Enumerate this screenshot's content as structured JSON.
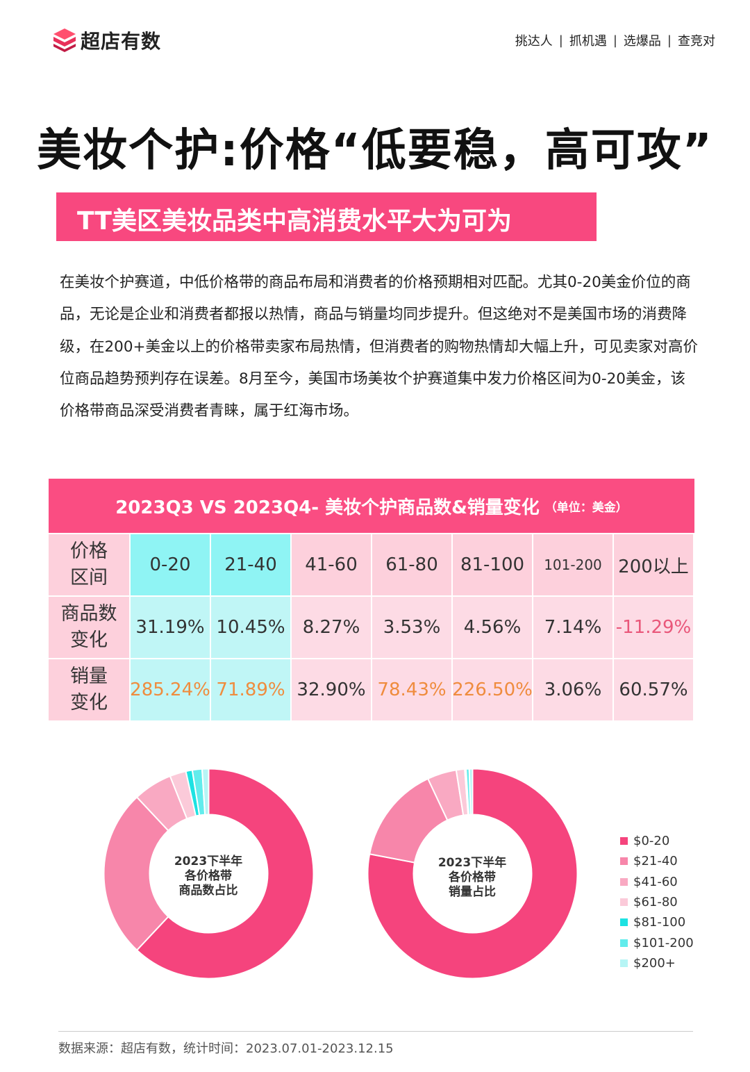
{
  "brand": {
    "name": "超店有数",
    "logo": "brand-logo-icon"
  },
  "nav": [
    "挑达人",
    "抓机遇",
    "选爆品",
    "查竞对"
  ],
  "title": "美妆个护:价格“低要稳，高可攻”",
  "subtitle": "TT美区美妆品类中高消费水平大为可为",
  "paragraph": "在美妆个护赛道，中低价格带的商品布局和消费者的价格预期相对匹配。尤其0-20美金价位的商品，无论是企业和消费者都报以热情，商品与销量均同步提升。但这绝对不是美国市场的消费降级，在200+美金以上的价格带卖家布局热情，但消费者的购物热情却大幅上升，可见卖家对高价位商品趋势预判存在误差。8月至今，美国市场美妆个护赛道集中发力价格区间为0-20美金，该价格带商品深受消费者青睐，属于红海市场。",
  "table": {
    "title": "2023Q3 VS 2023Q4- 美妆个护商品数&销量变化",
    "unit": "（单位：美金）",
    "row_labels": [
      "价格区间",
      "商品数变化",
      "销量变化"
    ],
    "price_ranges": [
      "0-20",
      "21-40",
      "41-60",
      "61-80",
      "81-100",
      "101-200",
      "200以上"
    ],
    "product_count_change": [
      "31.19%",
      "10.45%",
      "8.27%",
      "3.53%",
      "4.56%",
      "7.14%",
      "-11.29%"
    ],
    "sales_change": [
      "285.24%",
      "71.89%",
      "32.90%",
      "78.43%",
      "226.50%",
      "3.06%",
      "60.57%"
    ]
  },
  "chart_data": [
    {
      "type": "pie",
      "title": "2023下半年各价格带商品数占比",
      "categories": [
        "$0-20",
        "$21-40",
        "$41-60",
        "$61-80",
        "$81-100",
        "$101-200",
        "$200+"
      ],
      "values": [
        62.0,
        26.0,
        6.0,
        2.5,
        1.0,
        1.5,
        1.0
      ],
      "colors": [
        "#f5447d",
        "#f786aa",
        "#f9a9c2",
        "#fbcad9",
        "#1de2e2",
        "#62ecec",
        "#b6f5f5"
      ]
    },
    {
      "type": "pie",
      "title": "2023下半年各价格带销量占比",
      "categories": [
        "$0-20",
        "$21-40",
        "$41-60",
        "$61-80",
        "$81-100",
        "$101-200",
        "$200+"
      ],
      "values": [
        78.0,
        15.0,
        4.5,
        1.3,
        0.2,
        0.5,
        0.5
      ],
      "colors": [
        "#f5447d",
        "#f786aa",
        "#f9a9c2",
        "#fbcad9",
        "#1de2e2",
        "#62ecec",
        "#b6f5f5"
      ]
    }
  ],
  "donut1_label": [
    "2023下半年",
    "各价格带",
    "商品数占比"
  ],
  "donut2_label": [
    "2023下半年",
    "各价格带",
    "销量占比"
  ],
  "footer": "数据来源：超店有数，统计时间：2023.07.01-2023.12.15"
}
